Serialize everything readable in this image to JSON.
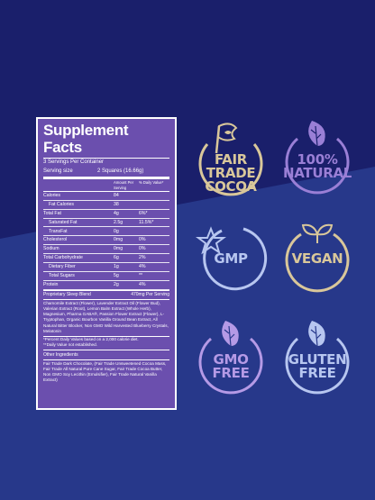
{
  "colors": {
    "background": "#1a1f6b",
    "background_lower": "#2a3b8f",
    "panel": "#6b4fae",
    "gold": "#d9c79a",
    "purple": "#9a7fd6",
    "lightblue": "#b7c6f0",
    "lightpurple": "#b59ae6"
  },
  "facts": {
    "title": "Supplement Facts",
    "servings": "3 Servings Per Container",
    "serving_size_label": "Serving size",
    "serving_size_value": "2 Squares (16.66g)",
    "amount_header": "Amount Per Serving",
    "dv_header": "% Daily Value*",
    "rows": [
      {
        "name": "Calories",
        "amount": "84",
        "dv": ""
      },
      {
        "name": "Fat Calories",
        "amount": "38",
        "dv": ""
      },
      {
        "name": "Total Fat",
        "amount": "4g",
        "dv": "6%*"
      },
      {
        "name": "Saturated Fat",
        "amount": "2.5g",
        "dv": "11.5%*"
      },
      {
        "name": "TransFat",
        "amount": "0g",
        "dv": ""
      },
      {
        "name": "Cholesterol",
        "amount": "0mg",
        "dv": "0%"
      },
      {
        "name": "Sodium",
        "amount": "0mg",
        "dv": "0%"
      },
      {
        "name": "Total Carbohydrate",
        "amount": "6g",
        "dv": "2%"
      },
      {
        "name": "Dietary Fiber",
        "amount": "1g",
        "dv": "4%"
      },
      {
        "name": "Total Sugars",
        "amount": "5g",
        "dv": "**"
      },
      {
        "name": "Protein",
        "amount": "2g",
        "dv": "4%"
      }
    ],
    "blend_name": "Proprietary Sleep Blend",
    "blend_amount": "470mg Per Serving",
    "blend_ingredients": "Chamomile Extract (Flower), Lavender Extract Oil (Flower Bud), Valerian Extract (Root), Lemon Balm Extract (Whole Herb), Magnesium, Pharma GABA®, Passion Flower Extract (Flower), L-Tryptophan, Organic Bourbon Vanilla Ground Bean Extract, All Natural Bitter Blocker, Non GMO Wild Harvested Blueberry Crystals, Melatonin",
    "footnote_1": "*Percent Daily Values based on a 2,000 calorie diet.",
    "footnote_2": "**Daily Value not established.",
    "other_header": "Other Ingredients",
    "other_ingredients": "Fair Trade Dark Chocolate, (Fair Trade Unsweetened Cocoa Mass, Fair Trade All Natural Pure Cane Sugar, Fair Trade Cocoa Butter, Non GMO Soy Lecithin (Emulsifier), Fair Trade Natural Vanilla Extract)"
  },
  "badges": [
    {
      "line1": "FAIR TRADE",
      "line2": "COCOA",
      "icon": "flag-leaf-icon",
      "color": "#d9c79a"
    },
    {
      "line1": "100%",
      "line2": "NATURAL",
      "icon": "leaf-icon",
      "color": "#9a7fd6"
    },
    {
      "line1": "GMP",
      "line2": "",
      "icon": "star-icon",
      "color": "#b7c6f0"
    },
    {
      "line1": "VEGAN",
      "line2": "",
      "icon": "sprout-icon",
      "color": "#d9c79a"
    },
    {
      "line1": "GMO",
      "line2": "FREE",
      "icon": "leaf-icon",
      "color": "#b59ae6"
    },
    {
      "line1": "GLUTEN",
      "line2": "FREE",
      "icon": "leaf-icon",
      "color": "#b7c6f0"
    }
  ]
}
